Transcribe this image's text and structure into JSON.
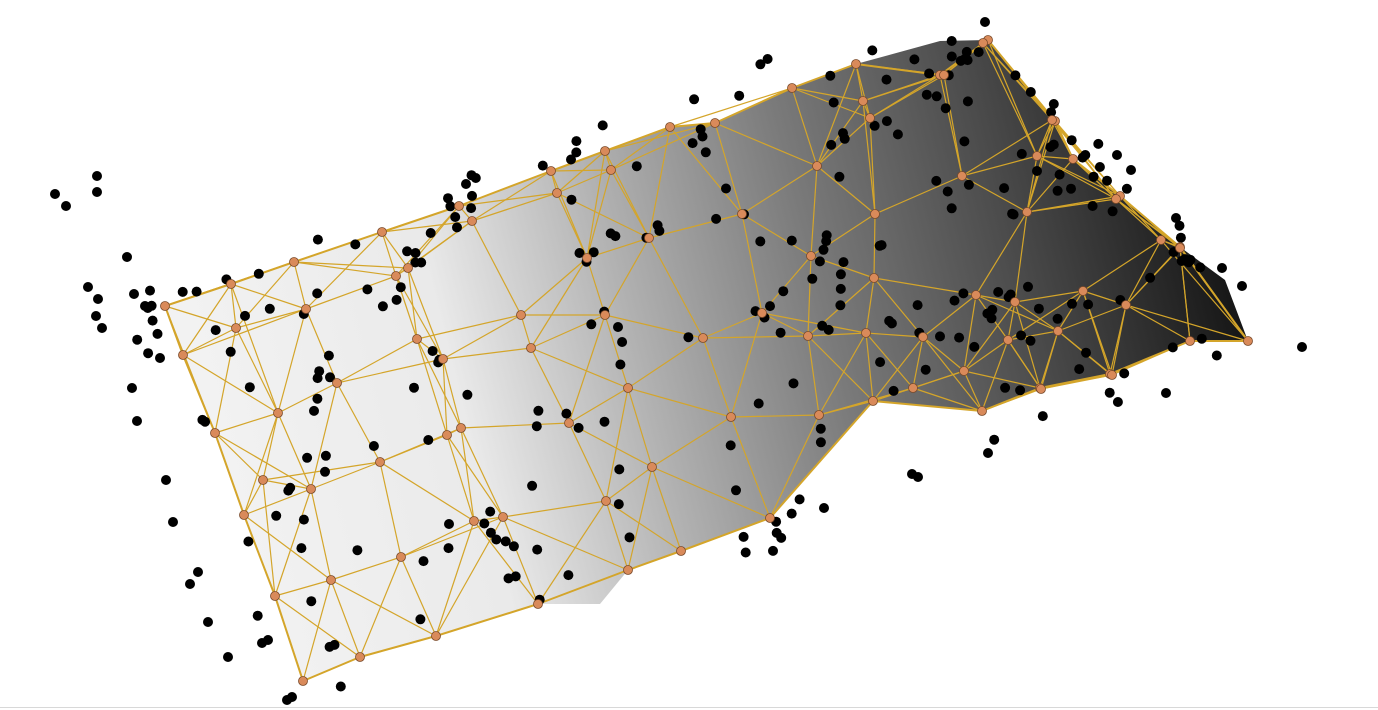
{
  "scene": {
    "description_kind": "triangulated-mesh-with-point-cloud",
    "colors": {
      "background": "#ffffff",
      "mesh_edge": "#d4a52a",
      "vertex_fill": "#d98a5a",
      "vertex_stroke": "#7a4a2a",
      "scatter_point": "#000000",
      "gradient_light": "#f4f4f4",
      "gradient_mid": "#9a9a9a",
      "gradient_dark": "#111111"
    },
    "vertex_count_approx": 130,
    "scatter_count_approx": 300
  }
}
